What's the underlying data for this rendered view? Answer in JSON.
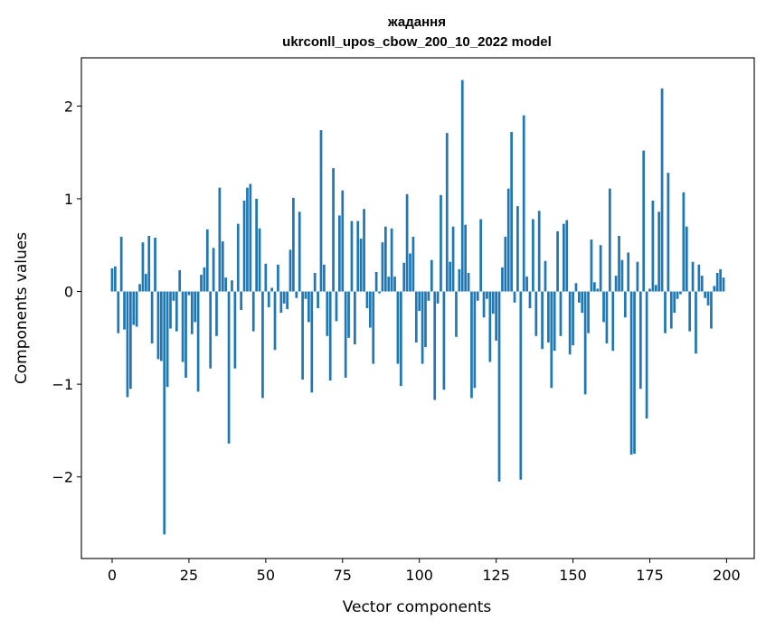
{
  "chart_data": {
    "type": "bar",
    "title_line1": "жадання",
    "title_line2": "ukrconll_upos_cbow_200_10_2022 model",
    "xlabel": "Vector components",
    "ylabel": "Components values",
    "xlim": [
      -10,
      209
    ],
    "ylim": [
      -2.88,
      2.52
    ],
    "xticks": [
      0,
      25,
      50,
      75,
      100,
      125,
      150,
      175,
      200
    ],
    "yticks": [
      -2,
      -1,
      0,
      1,
      2
    ],
    "ytick_labels": [
      "−2",
      "−1",
      "0",
      "1",
      "2"
    ],
    "bar_color": "#1f77b4",
    "values": [
      0.25,
      0.27,
      -0.45,
      0.59,
      -0.41,
      -1.14,
      -1.05,
      -0.36,
      -0.38,
      0.08,
      0.53,
      0.19,
      0.6,
      -0.56,
      0.58,
      -0.73,
      -0.75,
      -2.62,
      -1.03,
      -0.4,
      -0.1,
      -0.43,
      0.23,
      -0.76,
      -0.93,
      -0.04,
      -0.46,
      -0.33,
      -1.08,
      0.18,
      0.26,
      0.67,
      -0.83,
      0.47,
      -0.48,
      1.12,
      0.54,
      0.15,
      -1.64,
      0.12,
      -0.83,
      0.73,
      -0.2,
      0.98,
      1.12,
      1.16,
      -0.43,
      1.0,
      0.68,
      -1.15,
      0.3,
      -0.17,
      0.04,
      -0.63,
      0.29,
      -0.23,
      -0.13,
      -0.19,
      0.45,
      1.01,
      -0.07,
      0.86,
      -0.95,
      -0.08,
      -0.33,
      -1.09,
      0.2,
      -0.18,
      1.74,
      0.29,
      -0.48,
      -0.96,
      1.33,
      -0.32,
      0.82,
      1.09,
      -0.93,
      -0.5,
      0.76,
      -0.57,
      0.76,
      0.57,
      0.89,
      -0.18,
      -0.39,
      -0.78,
      0.21,
      -0.02,
      0.53,
      0.7,
      0.16,
      0.68,
      0.16,
      -0.78,
      -1.02,
      0.31,
      1.05,
      0.41,
      0.59,
      -0.55,
      -0.21,
      -0.78,
      -0.6,
      -0.1,
      0.34,
      -1.17,
      -0.13,
      1.04,
      -1.06,
      1.71,
      0.32,
      0.7,
      -0.49,
      0.24,
      2.28,
      0.72,
      0.2,
      -1.15,
      -1.04,
      -0.1,
      0.78,
      -0.28,
      -0.08,
      -0.76,
      -0.24,
      -0.53,
      -2.05,
      0.26,
      0.59,
      1.11,
      1.72,
      -0.12,
      0.92,
      -2.03,
      1.9,
      0.16,
      -0.18,
      0.78,
      -0.48,
      0.87,
      -0.62,
      0.33,
      -0.55,
      -1.04,
      -0.64,
      0.65,
      -0.48,
      0.73,
      0.77,
      -0.68,
      -0.58,
      0.09,
      -0.12,
      -0.23,
      -1.11,
      -0.45,
      0.56,
      0.1,
      0.03,
      0.5,
      -0.33,
      -0.56,
      1.11,
      -0.64,
      0.17,
      0.6,
      0.34,
      -0.28,
      0.42,
      -1.76,
      -1.75,
      0.32,
      -1.05,
      1.52,
      -1.37,
      0.03,
      0.98,
      0.07,
      0.86,
      2.19,
      -0.45,
      1.28,
      -0.4,
      -0.23,
      -0.08,
      -0.03,
      1.07,
      0.7,
      -0.43,
      0.32,
      -0.67,
      0.29,
      0.17,
      -0.07,
      -0.15,
      -0.4,
      0.06,
      0.2,
      0.24,
      0.15
    ]
  }
}
